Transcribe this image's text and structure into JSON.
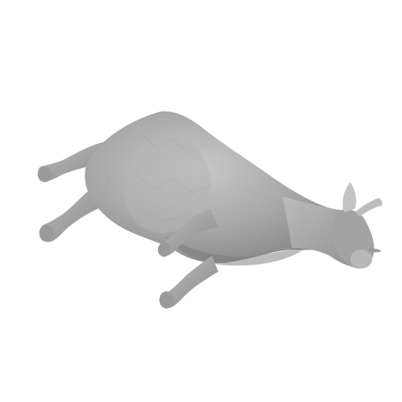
{
  "scene": {
    "subject": "cow-mesh",
    "background_color": "#ffffff",
    "mesh_color": "#a9a9a9",
    "shade_dark": "#7d7d7d",
    "shade_light": "#cfcfcf"
  }
}
